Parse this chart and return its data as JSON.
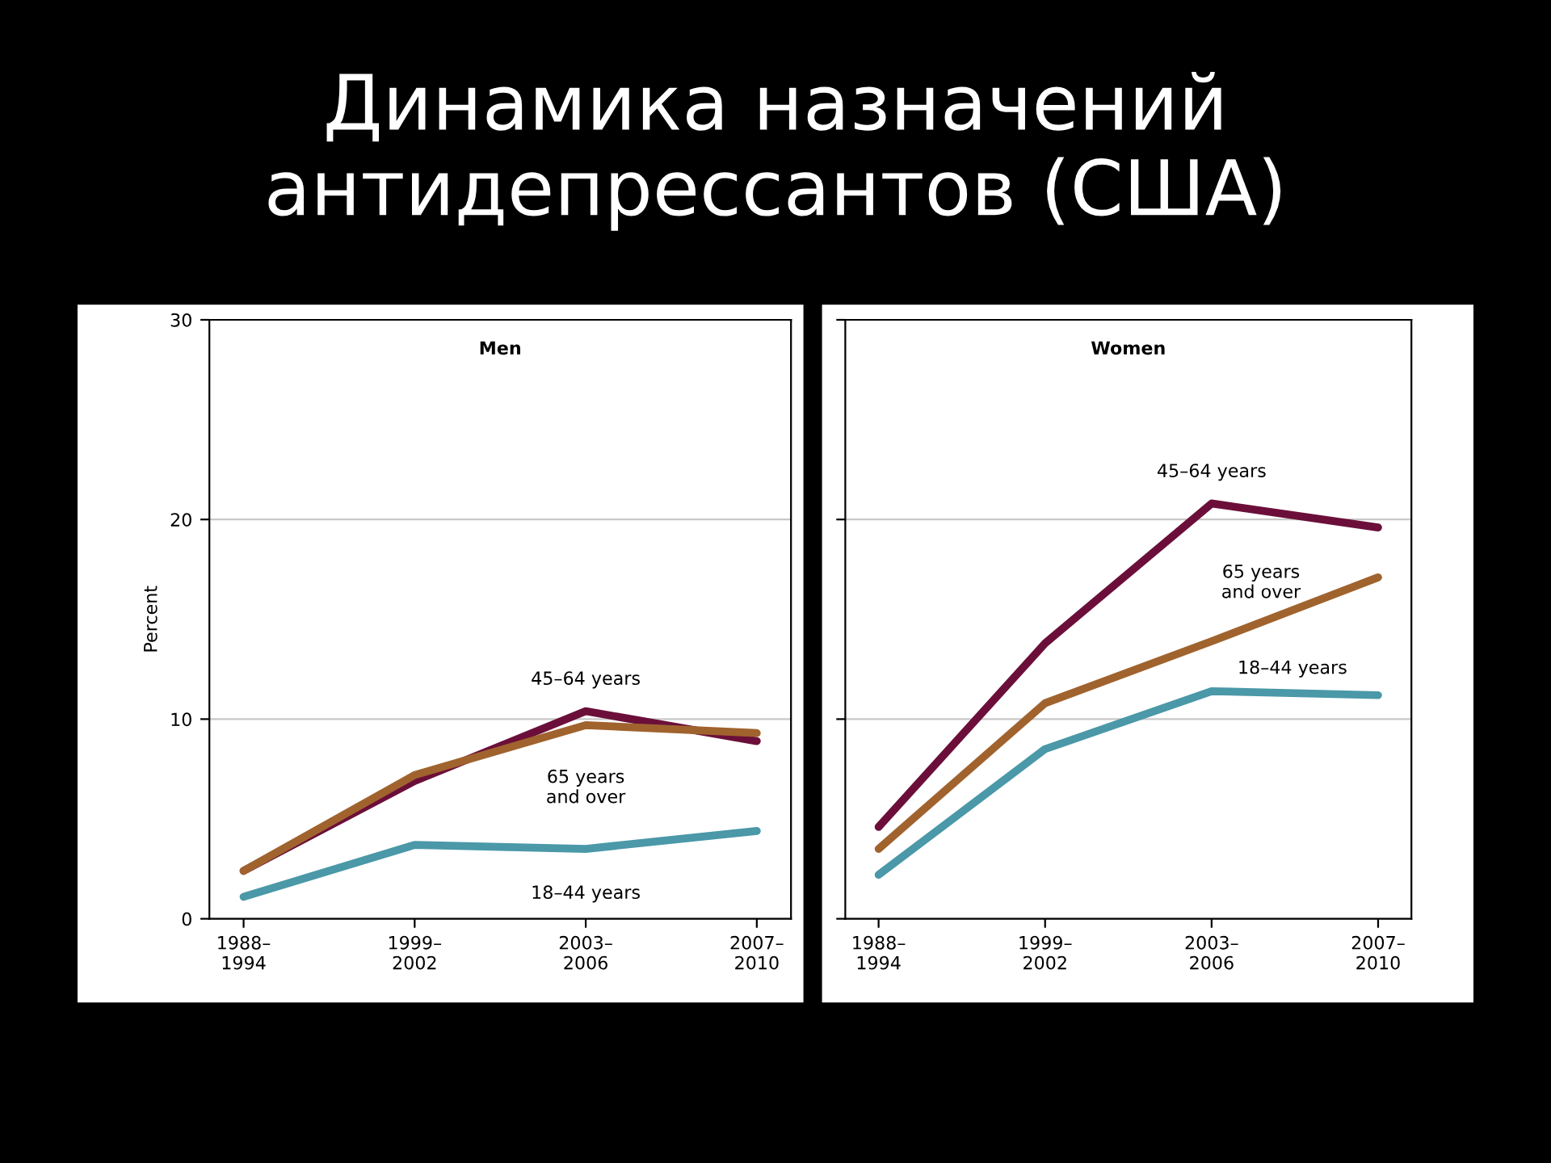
{
  "chart_data": [
    {
      "type": "line",
      "title": "Men",
      "ylabel": "Percent",
      "annotations": [
        "Динамика назначений антидепрессантов (США)"
      ],
      "categories": [
        "1988–\n1994",
        "1999–\n2002",
        "2003–\n2006",
        "2007–\n2010"
      ],
      "series": [
        {
          "name": "18–44 years",
          "color": "#4a98a8",
          "values": [
            1.1,
            3.7,
            3.5,
            4.4
          ]
        },
        {
          "name": "45–64 years",
          "color": "#6b0f3a",
          "values": [
            2.4,
            6.9,
            10.4,
            8.9
          ]
        },
        {
          "name": "65 years\nand over",
          "color": "#a0632e",
          "values": [
            2.4,
            7.2,
            9.7,
            9.3
          ]
        }
      ],
      "ylim": [
        0,
        30
      ],
      "yticks": [
        0,
        10,
        20,
        30
      ],
      "grid": "y"
    },
    {
      "type": "line",
      "title": "Women",
      "categories": [
        "1988–\n1994",
        "1999–\n2002",
        "2003–\n2006",
        "2007–\n2010"
      ],
      "series": [
        {
          "name": "18–44 years",
          "color": "#4a98a8",
          "values": [
            2.2,
            8.5,
            11.4,
            11.2
          ]
        },
        {
          "name": "45–64 years",
          "color": "#6b0f3a",
          "values": [
            4.6,
            13.8,
            20.8,
            19.6
          ]
        },
        {
          "name": "65 years\nand over",
          "color": "#a0632e",
          "values": [
            3.5,
            10.8,
            13.9,
            17.1
          ]
        }
      ],
      "ylim": [
        0,
        30
      ],
      "yticks": [
        0,
        10,
        20,
        30
      ],
      "grid": "y",
      "tick_labels": "x"
    }
  ]
}
